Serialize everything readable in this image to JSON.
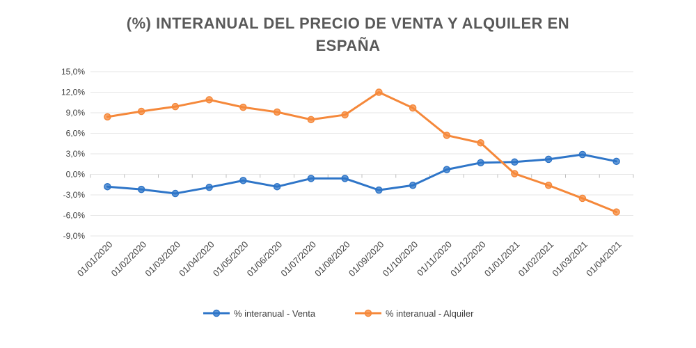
{
  "chart_data": {
    "type": "line",
    "title": "(%) INTERANUAL DEL PRECIO DE VENTA Y ALQUILER EN ESPAÑA",
    "categories": [
      "01/01/2020",
      "01/02/2020",
      "01/03/2020",
      "01/04/2020",
      "01/05/2020",
      "01/06/2020",
      "01/07/2020",
      "01/08/2020",
      "01/09/2020",
      "01/10/2020",
      "01/11/2020",
      "01/12/2020",
      "01/01/2021",
      "01/02/2021",
      "01/03/2021",
      "01/04/2021"
    ],
    "y_ticks": [
      "15,0%",
      "12,0%",
      "9,0%",
      "6,0%",
      "3,0%",
      "0,0%",
      "-3,0%",
      "-6,0%",
      "-9,0%"
    ],
    "ylim": [
      -9,
      15
    ],
    "grid": true,
    "legend_position": "bottom",
    "series": [
      {
        "name": "% interanual - Venta",
        "color": "#2e75c8",
        "values": [
          -1.8,
          -2.2,
          -2.8,
          -1.9,
          -0.9,
          -1.8,
          -0.6,
          -0.6,
          -2.3,
          -1.6,
          0.7,
          1.7,
          1.8,
          2.2,
          2.9,
          1.9
        ]
      },
      {
        "name": "% interanual - Alquiler",
        "color": "#f5883a",
        "values": [
          8.4,
          9.2,
          9.9,
          10.9,
          9.8,
          9.1,
          8.0,
          8.7,
          12.0,
          9.7,
          5.7,
          4.6,
          0.1,
          -1.6,
          -3.5,
          -5.5
        ]
      }
    ]
  }
}
